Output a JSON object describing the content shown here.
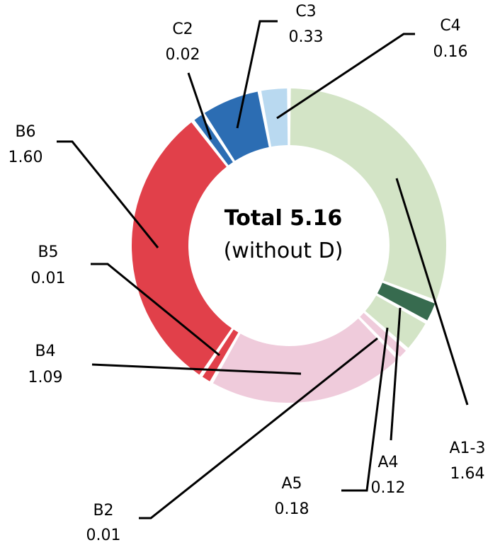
{
  "chart_data": {
    "type": "pie",
    "center": {
      "title": "Total 5.16",
      "subtitle": "(without D)"
    },
    "slices": [
      {
        "id": "a13",
        "label": "A1-3",
        "value": 1.64,
        "display": "1.64",
        "color": "#d3e4c6"
      },
      {
        "id": "a4",
        "label": "A4",
        "value": 0.12,
        "display": "0.12",
        "color": "#376b4f"
      },
      {
        "id": "a5",
        "label": "A5",
        "value": 0.18,
        "display": "0.18",
        "color": "#d3e4c6"
      },
      {
        "id": "b2",
        "label": "B2",
        "value": 0.01,
        "display": "0.01",
        "color": "#efcbdb"
      },
      {
        "id": "b4",
        "label": "B4",
        "value": 1.09,
        "display": "1.09",
        "color": "#efcbdb"
      },
      {
        "id": "b5",
        "label": "B5",
        "value": 0.01,
        "display": "0.01",
        "color": "#e1404a"
      },
      {
        "id": "b6",
        "label": "B6",
        "value": 1.6,
        "display": "1.60",
        "color": "#e1404a"
      },
      {
        "id": "c2",
        "label": "C2",
        "value": 0.02,
        "display": "0.02",
        "color": "#2c6db3"
      },
      {
        "id": "c3",
        "label": "C3",
        "value": 0.33,
        "display": "0.33",
        "color": "#2c6db3"
      },
      {
        "id": "c4",
        "label": "C4",
        "value": 0.16,
        "display": "0.16",
        "color": "#b9d9f0"
      }
    ]
  }
}
